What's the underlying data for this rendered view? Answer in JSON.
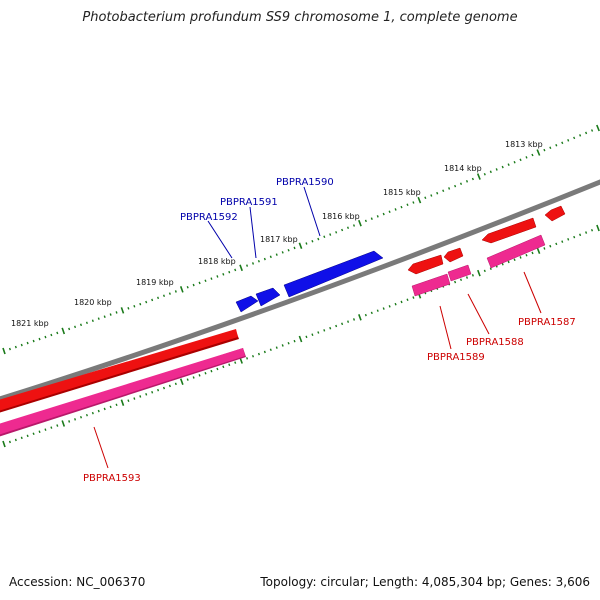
{
  "title": "Photobacterium profundum SS9 chromosome 1, complete genome",
  "footer": {
    "accession": "Accession: NC_006370",
    "stats": "Topology: circular; Length: 4,085,304 bp; Genes: 3,606"
  },
  "colors": {
    "backbone": "#7a7a7a",
    "tick": "#1a7a1a",
    "forward_gene": "#1010e8",
    "reverse_gene": "#ee1111",
    "reverse_cds": "#ee2a90",
    "label_blue": "#0000aa",
    "label_red": "#cc0000"
  },
  "kbp_labels": [
    "1813 kbp",
    "1814 kbp",
    "1815 kbp",
    "1816 kbp",
    "1817 kbp",
    "1818 kbp",
    "1819 kbp",
    "1820 kbp",
    "1821 kbp"
  ],
  "genes": [
    {
      "name": "PBPRA1587",
      "strand": "reverse"
    },
    {
      "name": "PBPRA1588",
      "strand": "reverse"
    },
    {
      "name": "PBPRA1589",
      "strand": "reverse"
    },
    {
      "name": "PBPRA1590",
      "strand": "forward"
    },
    {
      "name": "PBPRA1591",
      "strand": "forward"
    },
    {
      "name": "PBPRA1592",
      "strand": "forward"
    },
    {
      "name": "PBPRA1593",
      "strand": "reverse"
    }
  ]
}
